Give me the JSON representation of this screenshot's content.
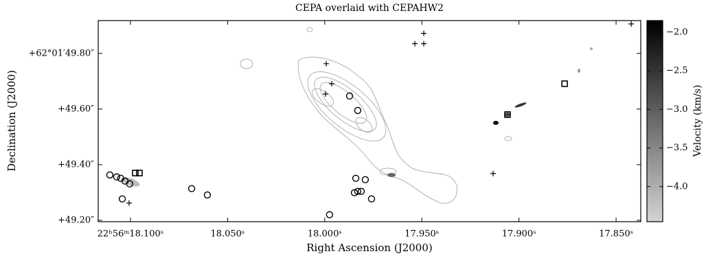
{
  "chart_data": {
    "type": "scatter",
    "title": "CEPA overlaid with CEPAHW2",
    "xlabel": "Right Ascension (J2000)",
    "ylabel": "Declination (J2000)",
    "xlim": [
      18.1166,
      17.8373
    ],
    "ylim": [
      49.195,
      49.918
    ],
    "xticks": [
      {
        "value": 18.1,
        "label": "22ʰ56ᵐ18.100ˢ"
      },
      {
        "value": 18.05,
        "label": "18.050ˢ"
      },
      {
        "value": 18.0,
        "label": "18.000ˢ"
      },
      {
        "value": 17.95,
        "label": "17.950ˢ"
      },
      {
        "value": 17.9,
        "label": "17.900ˢ"
      },
      {
        "value": 17.85,
        "label": "17.850ˢ"
      }
    ],
    "yticks": [
      {
        "value": 49.8,
        "label": "+62°01′49.80″"
      },
      {
        "value": 49.6,
        "label": "+49.60″"
      },
      {
        "value": 49.4,
        "label": "+49.40″"
      },
      {
        "value": 49.2,
        "label": "+49.20″"
      }
    ],
    "series": [
      {
        "marker": "circle",
        "color": "#000000",
        "x": [
          18.1106,
          18.1071,
          18.105,
          18.1028,
          18.1004,
          18.1042,
          18.0685,
          18.0604,
          17.9975,
          17.9872,
          17.983,
          17.984,
          17.9847,
          17.983,
          17.9791,
          17.9759,
          17.9812
        ],
        "y": [
          49.363,
          49.356,
          49.351,
          49.341,
          49.331,
          49.277,
          49.314,
          49.291,
          49.22,
          49.647,
          49.595,
          49.351,
          49.299,
          49.304,
          49.346,
          49.277,
          49.304
        ]
      },
      {
        "marker": "square",
        "color": "#000000",
        "x": [
          18.0975,
          18.0954,
          17.9059,
          17.8765
        ],
        "y": [
          49.37,
          49.37,
          49.58,
          49.691
        ]
      },
      {
        "marker": "plus",
        "color": "#000000",
        "x": [
          18.1007,
          17.9992,
          17.9964,
          17.9996,
          17.949,
          17.9536,
          17.949,
          17.9133,
          17.8422
        ],
        "y": [
          49.262,
          49.763,
          49.691,
          49.654,
          49.872,
          49.835,
          49.835,
          49.368,
          49.906
        ]
      }
    ],
    "colorbar": {
      "label": "Velocity (km/s)",
      "lim": [
        -4.455,
        -1.85
      ],
      "colors": [
        "#d4d4d4",
        "#000000"
      ],
      "ticks": [
        {
          "value": -2.0,
          "label": "−2.0"
        },
        {
          "value": -2.5,
          "label": "−2.5"
        },
        {
          "value": -3.0,
          "label": "−3.0"
        },
        {
          "value": -3.5,
          "label": "−3.5"
        },
        {
          "value": -4.0,
          "label": "−4.0"
        }
      ]
    }
  }
}
